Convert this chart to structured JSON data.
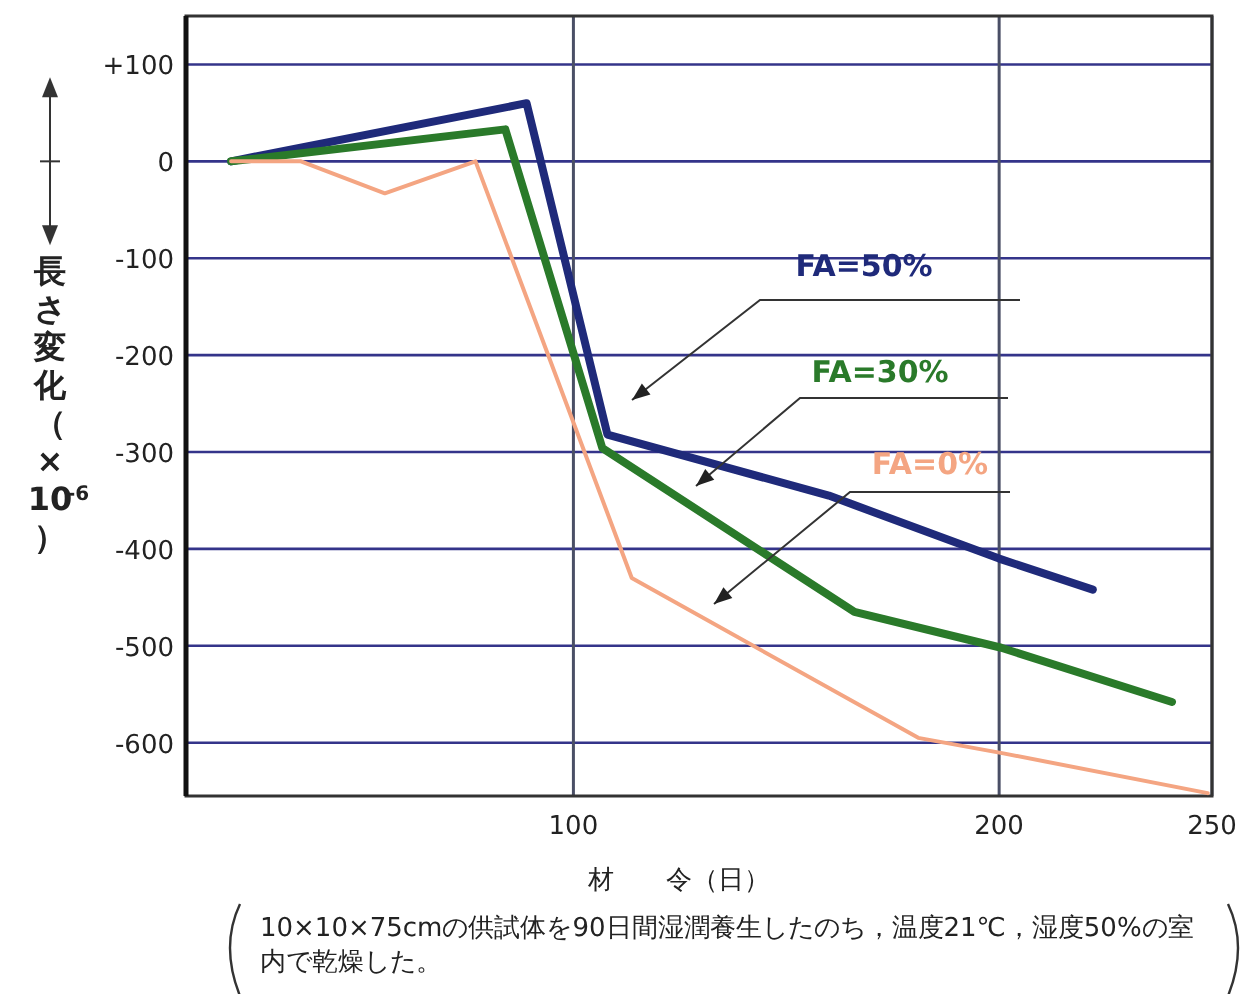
{
  "chart_data": {
    "type": "line",
    "xlabel": "材　　令（日）",
    "ylabel": "長さ変化（×10$^{-6}$）",
    "annotations": [
      "10×10×75cmの供試体を90日間湿潤養生したのち，温度21℃，湿度50%の室内で乾燥した。"
    ],
    "xlim": [
      9,
      250
    ],
    "xticks": [
      100,
      200,
      250
    ],
    "ylim": [
      -655,
      150
    ],
    "yticks": [
      {
        "value": 100,
        "label": "+100"
      },
      0,
      -100,
      -200,
      -300,
      -400,
      -500,
      -600
    ],
    "grid": true,
    "legend": false,
    "marker": "none",
    "line_style": "solid",
    "series": [
      {
        "name": "FA=50%",
        "color": "#1f2a7a",
        "x": [
          19.6,
          89,
          108,
          160,
          200,
          222
        ],
        "values": [
          0,
          60,
          -282,
          -345,
          -410,
          -442
        ]
      },
      {
        "name": "FA=30%",
        "color": "#2a7a2a",
        "x": [
          19.6,
          84,
          106.8,
          166,
          200.5,
          240.6
        ],
        "values": [
          0,
          33,
          -296,
          -465,
          -502,
          -558
        ]
      },
      {
        "name": "FA=0%",
        "color": "#f4a582",
        "x": [
          19.6,
          36,
          55.7,
          77,
          113.7,
          181,
          201,
          249
        ],
        "values": [
          0,
          0,
          -33,
          0,
          -430,
          -595,
          -611,
          -652
        ]
      }
    ]
  }
}
